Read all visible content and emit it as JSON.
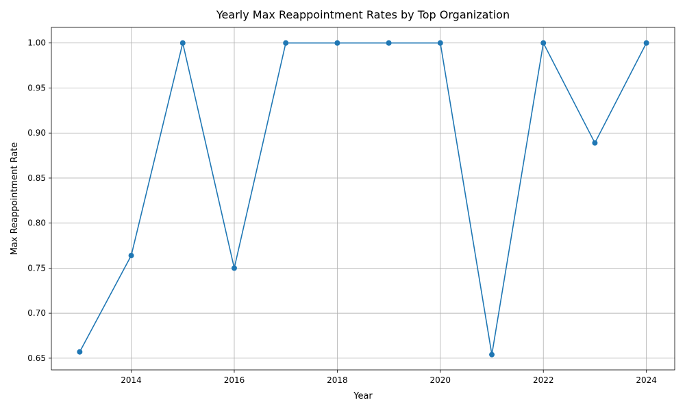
{
  "chart_data": {
    "type": "line",
    "title": "Yearly Max Reappointment Rates by Top Organization",
    "xlabel": "Year",
    "ylabel": "Max Reappointment Rate",
    "x": [
      2013,
      2014,
      2015,
      2016,
      2017,
      2018,
      2019,
      2020,
      2021,
      2022,
      2023,
      2024
    ],
    "series": [
      {
        "values": [
          0.657,
          0.764,
          1.0,
          0.75,
          1.0,
          1.0,
          1.0,
          1.0,
          0.654,
          1.0,
          0.889,
          1.0
        ]
      }
    ],
    "xlim": [
      2012.45,
      2024.55
    ],
    "ylim": [
      0.637,
      1.0173
    ],
    "xticks": [
      2014,
      2016,
      2018,
      2020,
      2022,
      2024
    ],
    "yticks": [
      0.65,
      0.7,
      0.75,
      0.8,
      0.85,
      0.9,
      0.95,
      1.0
    ],
    "ytick_labels": [
      "0.65",
      "0.70",
      "0.75",
      "0.80",
      "0.85",
      "0.90",
      "0.95",
      "1.00"
    ],
    "grid": true,
    "line_color": "#1f77b4",
    "marker": "circle"
  }
}
